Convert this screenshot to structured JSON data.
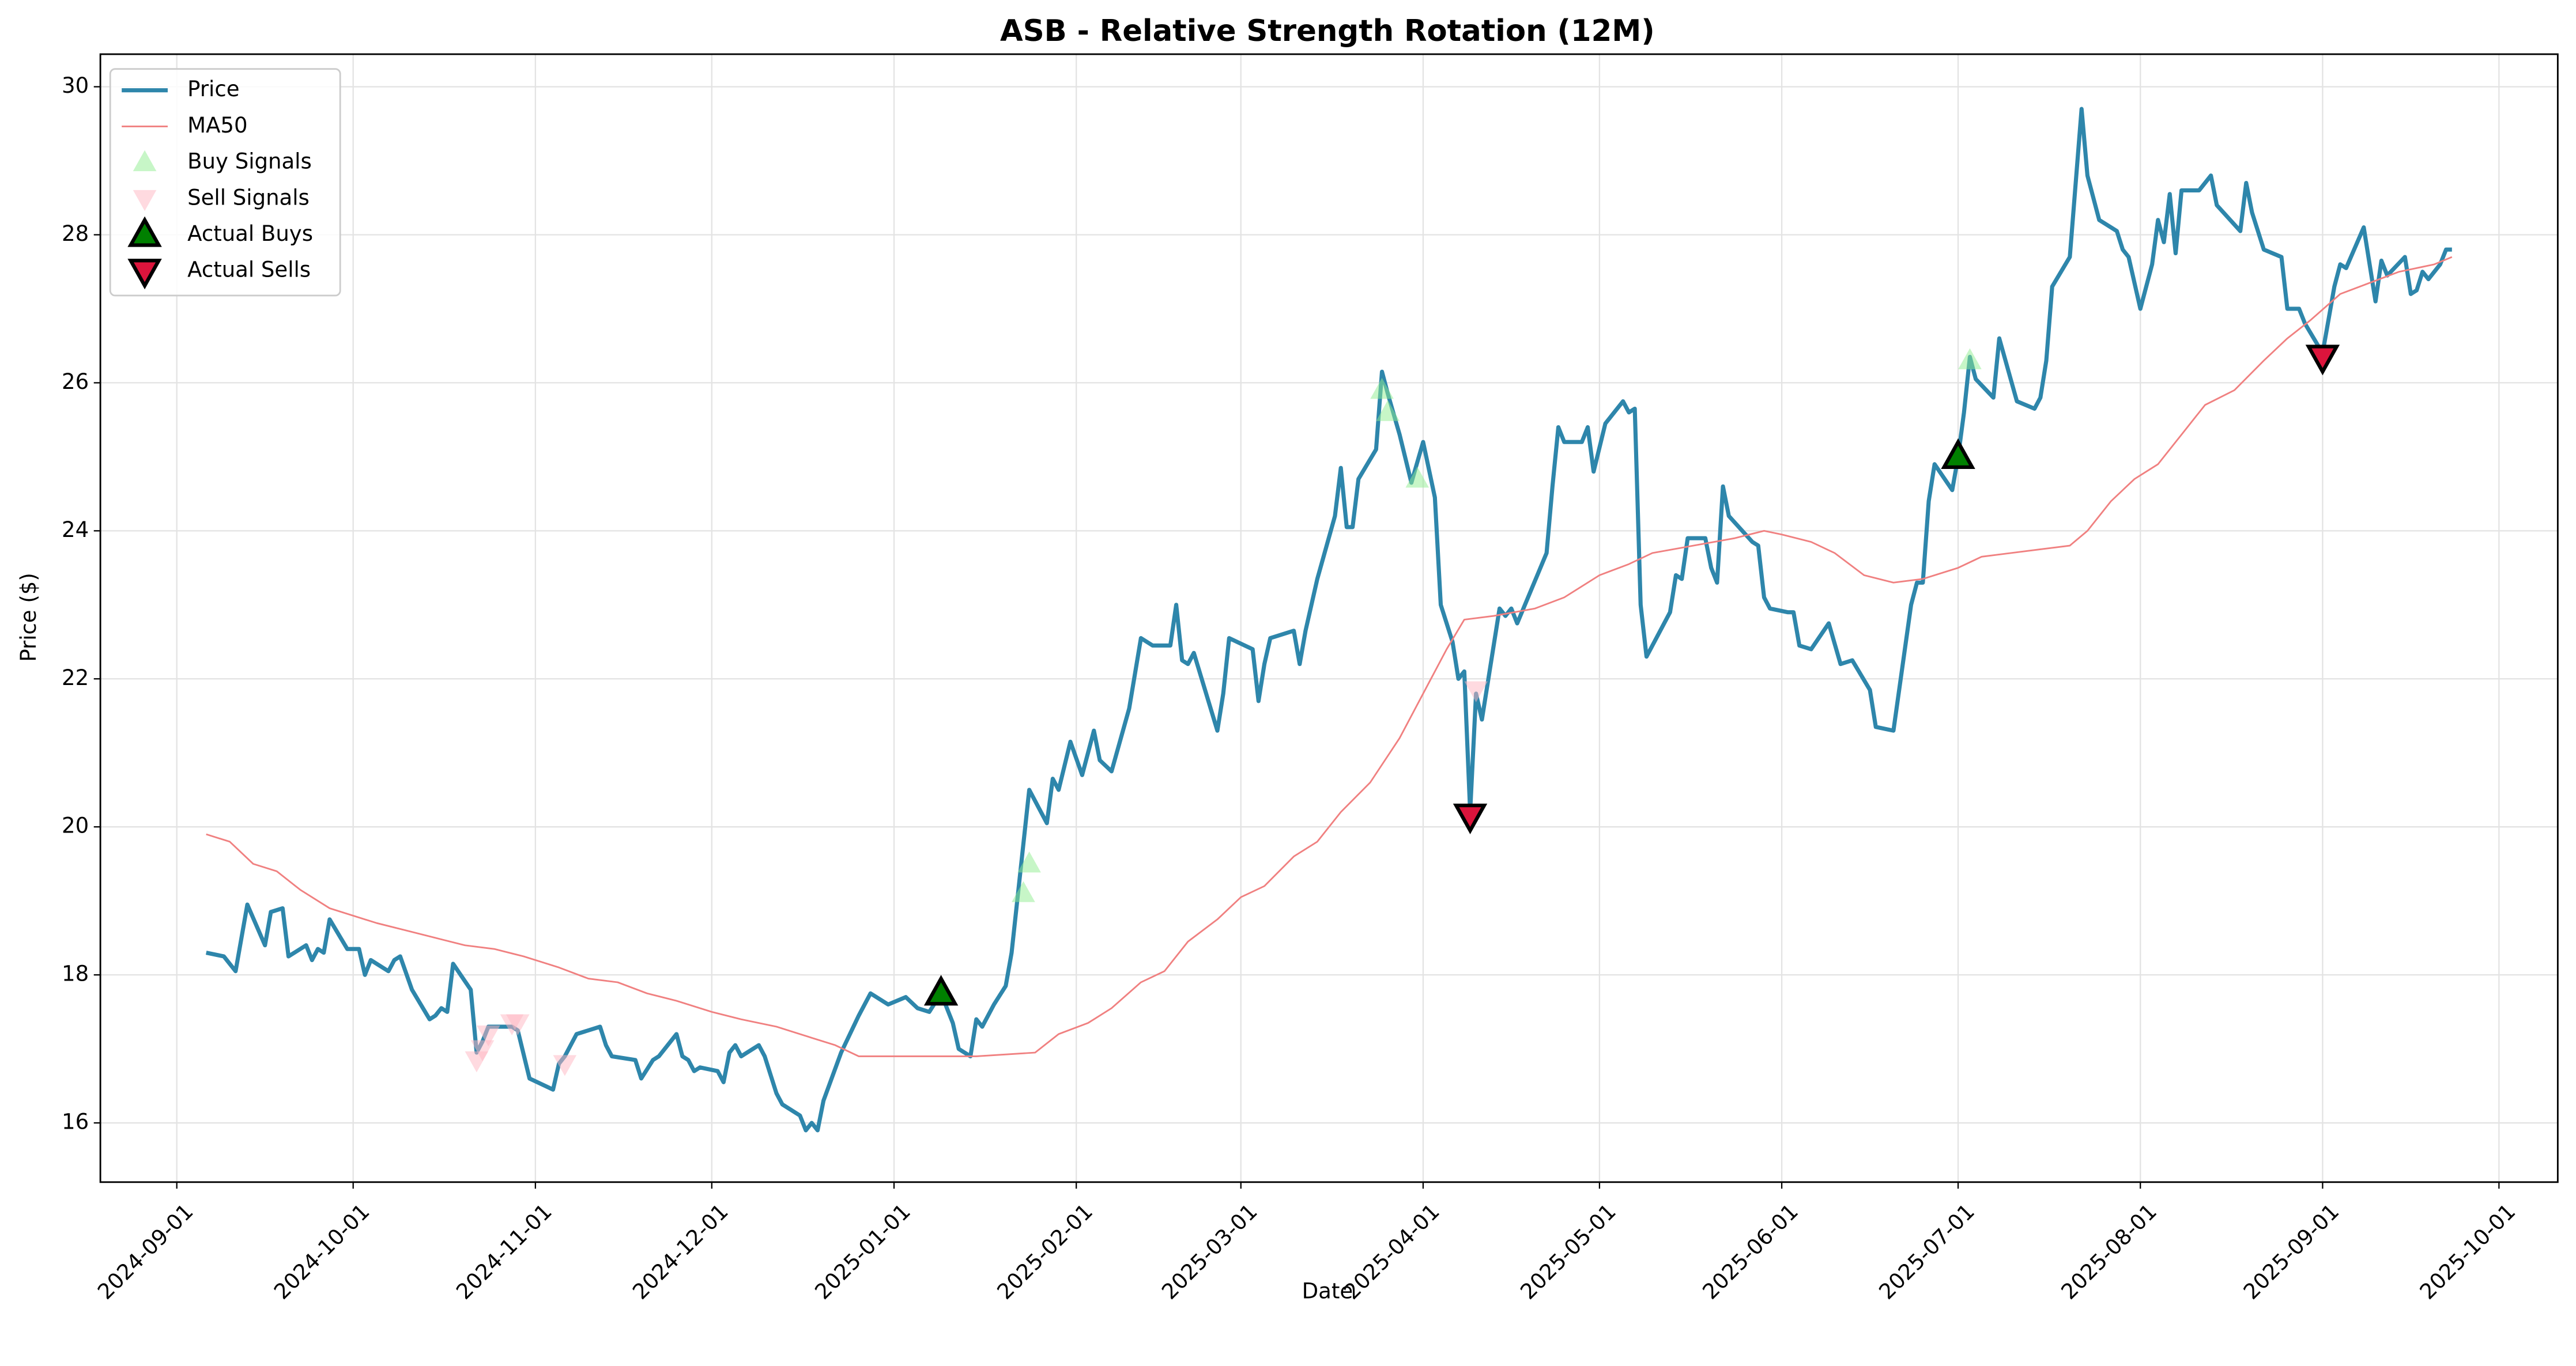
{
  "chart_data": {
    "type": "line",
    "title": "ASB - Relative Strength Rotation (12M)",
    "x_label": "Date",
    "y_label": "Price ($)",
    "xlim": [
      "2024-08-19",
      "2025-10-11"
    ],
    "xticks": [
      "2024-09-01",
      "2024-10-01",
      "2024-11-01",
      "2024-12-01",
      "2025-01-01",
      "2025-02-01",
      "2025-03-01",
      "2025-04-01",
      "2025-05-01",
      "2025-06-01",
      "2025-07-01",
      "2025-08-01",
      "2025-09-01",
      "2025-10-01"
    ],
    "ylim": [
      15.2,
      30.44
    ],
    "yticks": [
      16,
      18,
      20,
      22,
      24,
      26,
      28,
      30
    ],
    "grid": true,
    "legend": "upper left",
    "series": [
      {
        "name": "Price",
        "kind": "line",
        "color": "#2e86ab",
        "linewidth": 2.5,
        "x": [
          "2024-09-06",
          "2024-09-09",
          "2024-09-11",
          "2024-09-13",
          "2024-09-16",
          "2024-09-17",
          "2024-09-19",
          "2024-09-20",
          "2024-09-23",
          "2024-09-24",
          "2024-09-25",
          "2024-09-26",
          "2024-09-27",
          "2024-09-30",
          "2024-10-02",
          "2024-10-03",
          "2024-10-04",
          "2024-10-07",
          "2024-10-08",
          "2024-10-09",
          "2024-10-11",
          "2024-10-14",
          "2024-10-15",
          "2024-10-16",
          "2024-10-17",
          "2024-10-18",
          "2024-10-21",
          "2024-10-22",
          "2024-10-23",
          "2024-10-24",
          "2024-10-28",
          "2024-10-29",
          "2024-10-31",
          "2024-11-04",
          "2024-11-05",
          "2024-11-06",
          "2024-11-08",
          "2024-11-12",
          "2024-11-13",
          "2024-11-14",
          "2024-11-18",
          "2024-11-19",
          "2024-11-21",
          "2024-11-22",
          "2024-11-25",
          "2024-11-26",
          "2024-11-27",
          "2024-11-28",
          "2024-11-29",
          "2024-12-02",
          "2024-12-03",
          "2024-12-04",
          "2024-12-05",
          "2024-12-06",
          "2024-12-09",
          "2024-12-10",
          "2024-12-11",
          "2024-12-12",
          "2024-12-13",
          "2024-12-16",
          "2024-12-17",
          "2024-12-18",
          "2024-12-19",
          "2024-12-20",
          "2024-12-23",
          "2024-12-26",
          "2024-12-28",
          "2024-12-31",
          "2025-01-03",
          "2025-01-05",
          "2025-01-07",
          "2025-01-09",
          "2025-01-11",
          "2025-01-12",
          "2025-01-14",
          "2025-01-15",
          "2025-01-16",
          "2025-01-18",
          "2025-01-20",
          "2025-01-21",
          "2025-01-24",
          "2025-01-27",
          "2025-01-28",
          "2025-01-29",
          "2025-01-31",
          "2025-02-02",
          "2025-02-04",
          "2025-02-05",
          "2025-02-07",
          "2025-02-10",
          "2025-02-12",
          "2025-02-14",
          "2025-02-17",
          "2025-02-18",
          "2025-02-19",
          "2025-02-20",
          "2025-02-21",
          "2025-02-25",
          "2025-02-26",
          "2025-02-27",
          "2025-03-03",
          "2025-03-04",
          "2025-03-05",
          "2025-03-06",
          "2025-03-10",
          "2025-03-11",
          "2025-03-12",
          "2025-03-14",
          "2025-03-17",
          "2025-03-18",
          "2025-03-19",
          "2025-03-20",
          "2025-03-21",
          "2025-03-24",
          "2025-03-25",
          "2025-03-26",
          "2025-03-28",
          "2025-03-30",
          "2025-04-01",
          "2025-04-03",
          "2025-04-04",
          "2025-04-06",
          "2025-04-07",
          "2025-04-08",
          "2025-04-09",
          "2025-04-10",
          "2025-04-11",
          "2025-04-14",
          "2025-04-15",
          "2025-04-16",
          "2025-04-17",
          "2025-04-22",
          "2025-04-23",
          "2025-04-24",
          "2025-04-25",
          "2025-04-28",
          "2025-04-29",
          "2025-04-30",
          "2025-05-02",
          "2025-05-05",
          "2025-05-06",
          "2025-05-07",
          "2025-05-08",
          "2025-05-09",
          "2025-05-13",
          "2025-05-14",
          "2025-05-15",
          "2025-05-16",
          "2025-05-19",
          "2025-05-20",
          "2025-05-21",
          "2025-05-22",
          "2025-05-23",
          "2025-05-27",
          "2025-05-28",
          "2025-05-29",
          "2025-05-30",
          "2025-06-02",
          "2025-06-03",
          "2025-06-04",
          "2025-06-06",
          "2025-06-09",
          "2025-06-11",
          "2025-06-13",
          "2025-06-16",
          "2025-06-17",
          "2025-06-20",
          "2025-06-23",
          "2025-06-24",
          "2025-06-25",
          "2025-06-26",
          "2025-06-27",
          "2025-06-30",
          "2025-07-01",
          "2025-07-02",
          "2025-07-03",
          "2025-07-04",
          "2025-07-07",
          "2025-07-08",
          "2025-07-11",
          "2025-07-14",
          "2025-07-15",
          "2025-07-16",
          "2025-07-17",
          "2025-07-20",
          "2025-07-22",
          "2025-07-23",
          "2025-07-25",
          "2025-07-28",
          "2025-07-29",
          "2025-07-30",
          "2025-08-01",
          "2025-08-03",
          "2025-08-04",
          "2025-08-05",
          "2025-08-06",
          "2025-08-07",
          "2025-08-08",
          "2025-08-11",
          "2025-08-13",
          "2025-08-14",
          "2025-08-18",
          "2025-08-19",
          "2025-08-20",
          "2025-08-22",
          "2025-08-25",
          "2025-08-26",
          "2025-08-28",
          "2025-08-29",
          "2025-09-01",
          "2025-09-03",
          "2025-09-04",
          "2025-09-05",
          "2025-09-08",
          "2025-09-10",
          "2025-09-11",
          "2025-09-12",
          "2025-09-15",
          "2025-09-16",
          "2025-09-17",
          "2025-09-18",
          "2025-09-19",
          "2025-09-21",
          "2025-09-22",
          "2025-09-23"
        ],
        "values": [
          18.3,
          18.25,
          18.05,
          18.95,
          18.4,
          18.85,
          18.9,
          18.25,
          18.4,
          18.2,
          18.35,
          18.3,
          18.75,
          18.35,
          18.35,
          18.0,
          18.2,
          18.05,
          18.2,
          18.25,
          17.8,
          17.4,
          17.45,
          17.55,
          17.5,
          18.15,
          17.8,
          16.95,
          17.1,
          17.3,
          17.3,
          17.25,
          16.6,
          16.45,
          16.8,
          16.9,
          17.2,
          17.3,
          17.05,
          16.9,
          16.85,
          16.6,
          16.85,
          16.9,
          17.2,
          16.9,
          16.85,
          16.7,
          16.75,
          16.7,
          16.55,
          16.95,
          17.05,
          16.9,
          17.05,
          16.9,
          16.65,
          16.4,
          16.25,
          16.1,
          15.9,
          16.0,
          15.9,
          16.3,
          16.95,
          17.45,
          17.75,
          17.6,
          17.7,
          17.55,
          17.5,
          17.75,
          17.35,
          17.0,
          16.9,
          17.4,
          17.3,
          17.6,
          17.85,
          18.3,
          20.5,
          20.05,
          20.65,
          20.5,
          21.15,
          20.7,
          21.3,
          20.9,
          20.75,
          21.6,
          22.55,
          22.45,
          22.45,
          23.0,
          22.25,
          22.2,
          22.35,
          21.3,
          21.8,
          22.55,
          22.4,
          21.7,
          22.2,
          22.55,
          22.65,
          22.2,
          22.65,
          23.35,
          24.2,
          24.85,
          24.05,
          24.05,
          24.7,
          25.1,
          26.15,
          25.85,
          25.3,
          24.65,
          25.2,
          24.45,
          23.0,
          22.5,
          22.0,
          22.1,
          20.2,
          21.8,
          21.45,
          22.95,
          22.85,
          22.95,
          22.75,
          23.7,
          24.6,
          25.4,
          25.2,
          25.2,
          25.4,
          24.8,
          25.45,
          25.75,
          25.6,
          25.65,
          23.0,
          22.3,
          22.9,
          23.4,
          23.35,
          23.9,
          23.9,
          23.5,
          23.3,
          24.6,
          24.2,
          23.85,
          23.8,
          23.1,
          22.95,
          22.9,
          22.9,
          22.45,
          22.4,
          22.75,
          22.2,
          22.25,
          21.85,
          21.35,
          21.3,
          23.0,
          23.3,
          23.3,
          24.4,
          24.9,
          24.55,
          25.0,
          25.6,
          26.35,
          26.05,
          25.8,
          26.6,
          25.75,
          25.65,
          25.8,
          26.3,
          27.3,
          27.7,
          29.7,
          28.8,
          28.2,
          28.05,
          27.8,
          27.7,
          27.0,
          27.6,
          28.2,
          27.9,
          28.55,
          27.75,
          28.6,
          28.6,
          28.8,
          28.4,
          28.05,
          28.7,
          28.3,
          27.8,
          27.7,
          27.0,
          27.0,
          26.8,
          26.4,
          27.3,
          27.6,
          27.55,
          28.1,
          27.1,
          27.65,
          27.45,
          27.7,
          27.2,
          27.25,
          27.5,
          27.4,
          27.6,
          27.8,
          27.8
        ]
      },
      {
        "name": "MA50",
        "kind": "line",
        "color": "#f08080",
        "linewidth": 1,
        "x": [
          "2024-09-06",
          "2024-09-10",
          "2024-09-14",
          "2024-09-18",
          "2024-09-22",
          "2024-09-27",
          "2024-10-01",
          "2024-10-05",
          "2024-10-10",
          "2024-10-15",
          "2024-10-20",
          "2024-10-25",
          "2024-10-30",
          "2024-11-05",
          "2024-11-10",
          "2024-11-15",
          "2024-11-20",
          "2024-11-25",
          "2024-12-01",
          "2024-12-06",
          "2024-12-12",
          "2024-12-18",
          "2024-12-22",
          "2024-12-26",
          "2025-01-05",
          "2025-01-15",
          "2025-01-25",
          "2025-01-29",
          "2025-02-03",
          "2025-02-07",
          "2025-02-12",
          "2025-02-16",
          "2025-02-20",
          "2025-02-25",
          "2025-03-01",
          "2025-03-05",
          "2025-03-10",
          "2025-03-14",
          "2025-03-18",
          "2025-03-23",
          "2025-03-28",
          "2025-04-01",
          "2025-04-05",
          "2025-04-08",
          "2025-04-13",
          "2025-04-20",
          "2025-04-25",
          "2025-05-01",
          "2025-05-06",
          "2025-05-10",
          "2025-05-17",
          "2025-05-24",
          "2025-05-29",
          "2025-06-01",
          "2025-06-06",
          "2025-06-10",
          "2025-06-15",
          "2025-06-20",
          "2025-06-25",
          "2025-07-01",
          "2025-07-05",
          "2025-07-10",
          "2025-07-15",
          "2025-07-20",
          "2025-07-23",
          "2025-07-27",
          "2025-07-31",
          "2025-08-04",
          "2025-08-08",
          "2025-08-12",
          "2025-08-17",
          "2025-08-22",
          "2025-08-26",
          "2025-08-30",
          "2025-09-04",
          "2025-09-09",
          "2025-09-14",
          "2025-09-20",
          "2025-09-23"
        ],
        "values": [
          19.9,
          19.8,
          19.5,
          19.4,
          19.15,
          18.9,
          18.8,
          18.7,
          18.6,
          18.5,
          18.4,
          18.35,
          18.25,
          18.1,
          17.95,
          17.9,
          17.75,
          17.65,
          17.5,
          17.4,
          17.3,
          17.15,
          17.05,
          16.9,
          16.9,
          16.9,
          16.95,
          17.2,
          17.35,
          17.55,
          17.9,
          18.05,
          18.45,
          18.75,
          19.05,
          19.2,
          19.6,
          19.8,
          20.2,
          20.6,
          21.2,
          21.8,
          22.4,
          22.8,
          22.85,
          22.95,
          23.1,
          23.4,
          23.55,
          23.7,
          23.8,
          23.9,
          24.0,
          23.95,
          23.85,
          23.7,
          23.4,
          23.3,
          23.35,
          23.5,
          23.65,
          23.7,
          23.75,
          23.8,
          24.0,
          24.4,
          24.7,
          24.9,
          25.3,
          25.7,
          25.9,
          26.3,
          26.6,
          26.85,
          27.2,
          27.35,
          27.5,
          27.6,
          27.7
        ]
      },
      {
        "name": "Buy Signals",
        "kind": "marker",
        "marker": "up",
        "color": "#90ee90",
        "alpha": 0.5,
        "x": [
          "2025-01-23",
          "2025-01-24",
          "2025-03-25",
          "2025-03-26",
          "2025-03-31",
          "2025-07-03"
        ],
        "values": [
          19.1,
          19.5,
          25.9,
          25.6,
          24.7,
          26.3
        ]
      },
      {
        "name": "Sell Signals",
        "kind": "marker",
        "marker": "down",
        "color": "#ffb6c1",
        "alpha": 0.5,
        "x": [
          "2024-10-22",
          "2024-10-23",
          "2024-10-24",
          "2024-10-28",
          "2024-10-29",
          "2024-11-06",
          "2025-04-10"
        ],
        "values": [
          16.85,
          17.0,
          17.2,
          17.35,
          17.35,
          16.8,
          21.85
        ]
      },
      {
        "name": "Actual Buys",
        "kind": "marker",
        "marker": "up",
        "color": "#008000",
        "edgecolor": "#000000",
        "alpha": 1,
        "x": [
          "2025-01-09",
          "2025-07-01"
        ],
        "values": [
          17.75,
          25.0
        ]
      },
      {
        "name": "Actual Sells",
        "kind": "marker",
        "marker": "down",
        "color": "#dc143c",
        "edgecolor": "#000000",
        "alpha": 1,
        "x": [
          "2025-04-09",
          "2025-09-01"
        ],
        "values": [
          20.15,
          26.35
        ]
      }
    ]
  }
}
